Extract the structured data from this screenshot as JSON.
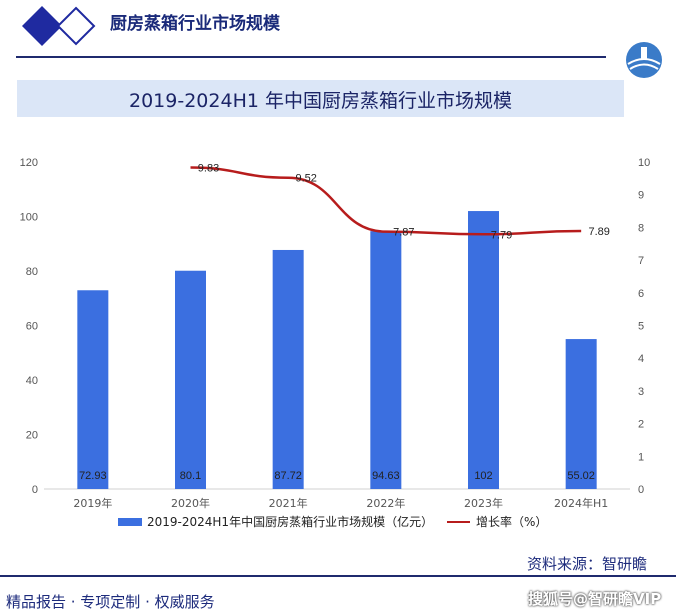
{
  "header": {
    "title": "厨房蒸箱行业市场规模"
  },
  "chart_title": "2019-2024H1 年中国厨房蒸箱行业市场规模",
  "chart_data": {
    "type": "bar",
    "categories": [
      "2019年",
      "2020年",
      "2021年",
      "2022年",
      "2023年",
      "2024年H1"
    ],
    "series": [
      {
        "name": "2019-2024H1年中国厨房蒸箱行业市场规模（亿元）",
        "type": "bar",
        "axis": "left",
        "values": [
          72.93,
          80.1,
          87.72,
          94.63,
          102,
          55.02
        ],
        "labels": [
          "72.93",
          "80.1",
          "87.72",
          "94.63",
          "102",
          "55.02"
        ]
      },
      {
        "name": "增长率（%）",
        "type": "line",
        "axis": "right",
        "values": [
          null,
          9.83,
          9.52,
          7.87,
          7.79,
          7.89
        ],
        "labels": [
          "",
          "9.83",
          "9.52",
          "7.87",
          "7.79",
          "7.89"
        ]
      }
    ],
    "y_left": {
      "ticks": [
        "0",
        "20",
        "40",
        "60",
        "80",
        "100",
        "120"
      ],
      "ylim": [
        0,
        120
      ]
    },
    "y_right": {
      "ticks": [
        "0",
        "1",
        "2",
        "3",
        "4",
        "5",
        "6",
        "7",
        "8",
        "9",
        "10"
      ],
      "ylim": [
        0,
        10
      ]
    },
    "grid": false,
    "legend_position": "bottom",
    "colors": {
      "bar": "#3b6fe0",
      "line": "#b71c1c"
    }
  },
  "source": "资料来源：智研瞻",
  "footer": {
    "left": "精品报告 ·  专项定制 · 权威服务",
    "right": "搜狐号@智研瞻VIP"
  }
}
